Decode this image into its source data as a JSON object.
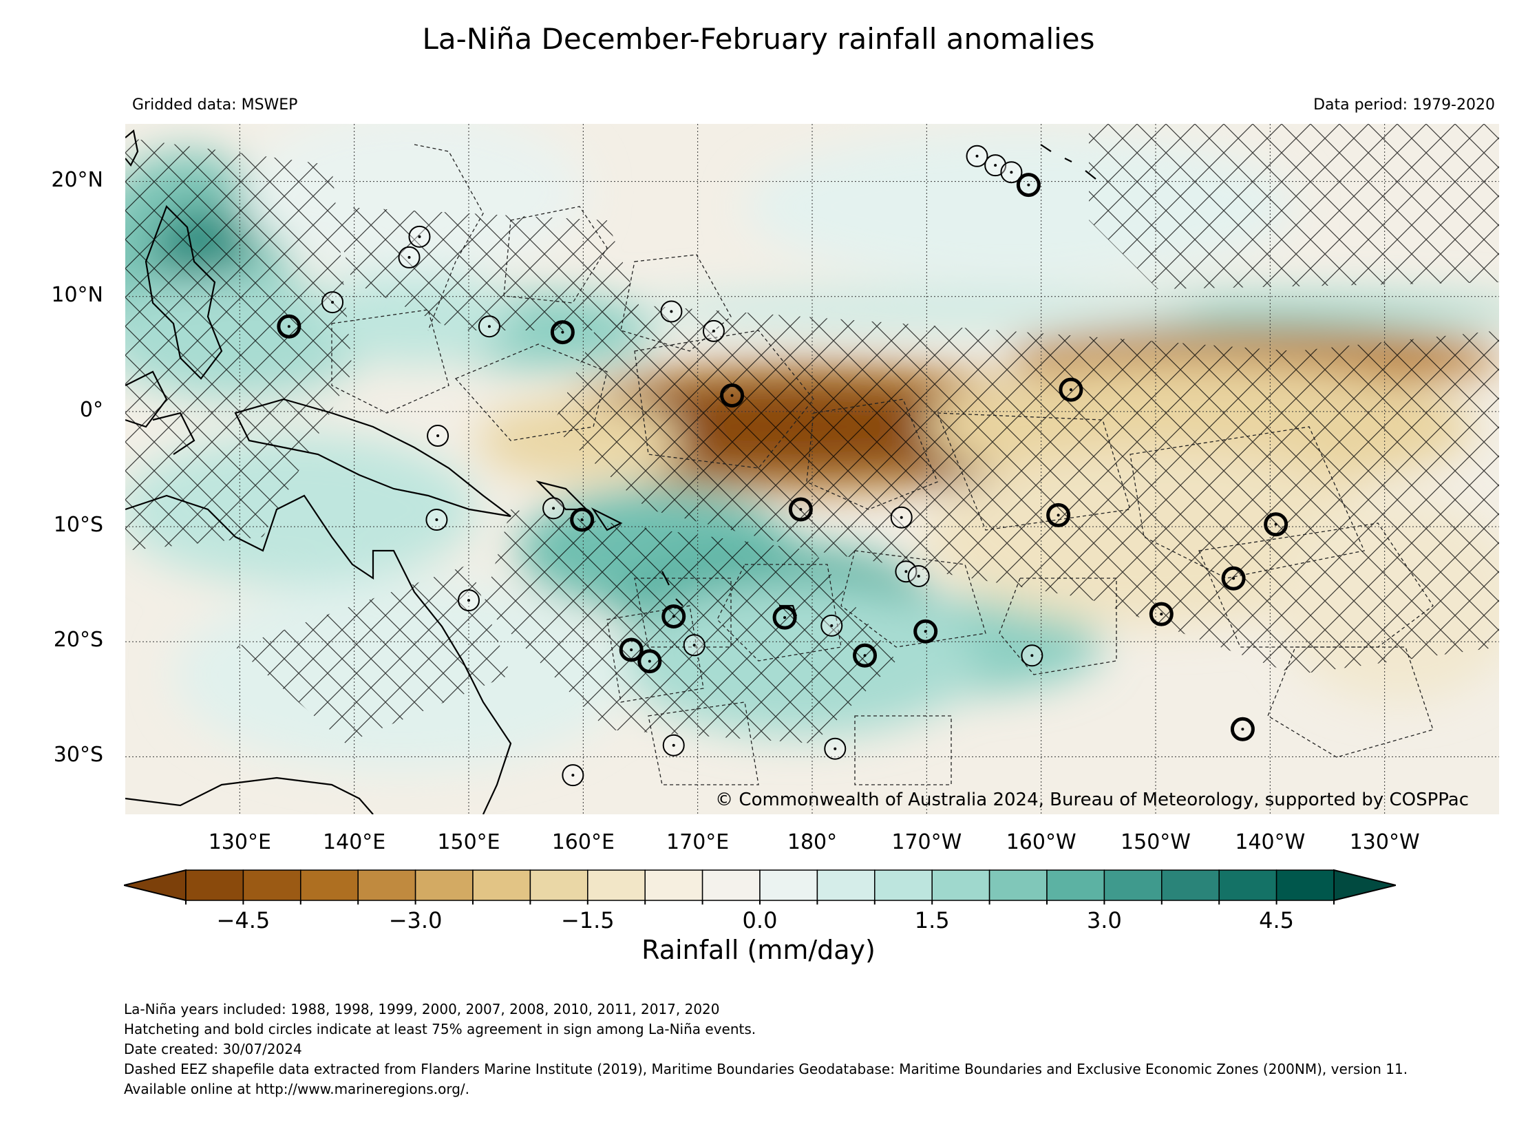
{
  "title": "La-Niña December-February rainfall anomalies",
  "source_left": "Gridded data: MSWEP",
  "source_right": "Data period: 1979-2020",
  "copyright": "© Commonwealth of Australia 2024, Bureau of Meteorology, supported by COSPPac",
  "map": {
    "lon_range": [
      120,
      240
    ],
    "lat_range": [
      -35,
      25
    ],
    "lat_ticks": [
      {
        "value": 20,
        "label": "20°N"
      },
      {
        "value": 10,
        "label": "10°N"
      },
      {
        "value": 0,
        "label": "0°"
      },
      {
        "value": -10,
        "label": "10°S"
      },
      {
        "value": -20,
        "label": "20°S"
      },
      {
        "value": -30,
        "label": "30°S"
      }
    ],
    "lon_ticks": [
      {
        "value": 130,
        "label": "130°E"
      },
      {
        "value": 140,
        "label": "140°E"
      },
      {
        "value": 150,
        "label": "150°E"
      },
      {
        "value": 160,
        "label": "160°E"
      },
      {
        "value": 170,
        "label": "170°E"
      },
      {
        "value": 180,
        "label": "180°"
      },
      {
        "value": 190,
        "label": "170°W"
      },
      {
        "value": 200,
        "label": "160°W"
      },
      {
        "value": 210,
        "label": "150°W"
      },
      {
        "value": 220,
        "label": "140°W"
      },
      {
        "value": 230,
        "label": "130°W"
      }
    ],
    "background_color": "#f3efe6",
    "hatch_color": "#000000",
    "coastline_color": "#000000",
    "eez_line_style": "dashed",
    "stations": [
      {
        "lon": 194.4,
        "lat": 22.2,
        "bold": false
      },
      {
        "lon": 196.0,
        "lat": 21.4,
        "bold": false
      },
      {
        "lon": 197.4,
        "lat": 20.8,
        "bold": false
      },
      {
        "lon": 198.9,
        "lat": 19.7,
        "bold": true
      },
      {
        "lon": 145.7,
        "lat": 15.2,
        "bold": false
      },
      {
        "lon": 144.8,
        "lat": 13.4,
        "bold": false
      },
      {
        "lon": 138.1,
        "lat": 9.5,
        "bold": false
      },
      {
        "lon": 134.3,
        "lat": 7.4,
        "bold": true
      },
      {
        "lon": 151.8,
        "lat": 7.4,
        "bold": false
      },
      {
        "lon": 158.2,
        "lat": 6.9,
        "bold": true
      },
      {
        "lon": 171.4,
        "lat": 7.0,
        "bold": false
      },
      {
        "lon": 167.7,
        "lat": 8.7,
        "bold": false
      },
      {
        "lon": 173.0,
        "lat": 1.4,
        "bold": true
      },
      {
        "lon": 202.6,
        "lat": 1.9,
        "bold": true
      },
      {
        "lon": 147.3,
        "lat": -2.1,
        "bold": false
      },
      {
        "lon": 147.2,
        "lat": -9.4,
        "bold": false
      },
      {
        "lon": 157.4,
        "lat": -8.4,
        "bold": false
      },
      {
        "lon": 159.9,
        "lat": -9.4,
        "bold": true
      },
      {
        "lon": 179.0,
        "lat": -8.5,
        "bold": true
      },
      {
        "lon": 187.8,
        "lat": -9.2,
        "bold": false
      },
      {
        "lon": 201.5,
        "lat": -9.0,
        "bold": true
      },
      {
        "lon": 220.5,
        "lat": -9.8,
        "bold": true
      },
      {
        "lon": 216.8,
        "lat": -14.5,
        "bold": true
      },
      {
        "lon": 188.2,
        "lat": -13.9,
        "bold": false
      },
      {
        "lon": 189.3,
        "lat": -14.3,
        "bold": false
      },
      {
        "lon": 210.5,
        "lat": -17.6,
        "bold": true
      },
      {
        "lon": 150.0,
        "lat": -16.4,
        "bold": false
      },
      {
        "lon": 167.9,
        "lat": -17.8,
        "bold": true
      },
      {
        "lon": 177.6,
        "lat": -17.9,
        "bold": true
      },
      {
        "lon": 181.7,
        "lat": -18.6,
        "bold": false
      },
      {
        "lon": 189.9,
        "lat": -19.1,
        "bold": true
      },
      {
        "lon": 169.7,
        "lat": -20.3,
        "bold": false
      },
      {
        "lon": 164.2,
        "lat": -20.7,
        "bold": true
      },
      {
        "lon": 165.8,
        "lat": -21.7,
        "bold": true
      },
      {
        "lon": 184.6,
        "lat": -21.2,
        "bold": true
      },
      {
        "lon": 199.2,
        "lat": -21.2,
        "bold": false
      },
      {
        "lon": 217.6,
        "lat": -27.6,
        "bold": true
      },
      {
        "lon": 167.9,
        "lat": -29.0,
        "bold": false
      },
      {
        "lon": 182.0,
        "lat": -29.3,
        "bold": false
      },
      {
        "lon": 159.1,
        "lat": -31.6,
        "bold": false
      }
    ]
  },
  "colorbar": {
    "label": "Rainfall (mm/day)",
    "bounds": [
      -5.0,
      -4.5,
      -4.0,
      -3.5,
      -3.0,
      -2.5,
      -2.0,
      -1.5,
      -1.0,
      -0.5,
      0.0,
      0.5,
      1.0,
      1.5,
      2.0,
      2.5,
      3.0,
      3.5,
      4.0,
      4.5,
      5.0
    ],
    "colors": [
      "#8a4a0c",
      "#9b5a14",
      "#ae6f21",
      "#c08a3f",
      "#d3aa63",
      "#e2c485",
      "#ead7a6",
      "#f2e6c7",
      "#f6efe0",
      "#f4f2ec",
      "#ebf3f1",
      "#d5ede9",
      "#bde5de",
      "#9fd8cd",
      "#80c7b9",
      "#5cb2a3",
      "#3f9a8d",
      "#2a8479",
      "#147266",
      "#00574c"
    ],
    "under_color": "#7c400a",
    "over_color": "#014a40",
    "tick_values": [
      -4.5,
      -3.0,
      -1.5,
      0.0,
      1.5,
      3.0,
      4.5
    ],
    "tick_labels": [
      "−4.5",
      "−3.0",
      "−1.5",
      "0.0",
      "1.5",
      "3.0",
      "4.5"
    ]
  },
  "notes": [
    "La-Niña years included: 1988, 1998, 1999, 2000, 2007, 2008, 2010, 2011, 2017, 2020",
    "Hatcheting and bold circles indicate at least 75% agreement in sign among La-Niña events.",
    "Date created: 30/07/2024",
    "Dashed EEZ shapefile data extracted from Flanders Marine Institute (2019), Maritime Boundaries Geodatabase: Maritime Boundaries and Exclusive Economic Zones (200NM), version 11. Available online at http://www.marineregions.org/."
  ]
}
